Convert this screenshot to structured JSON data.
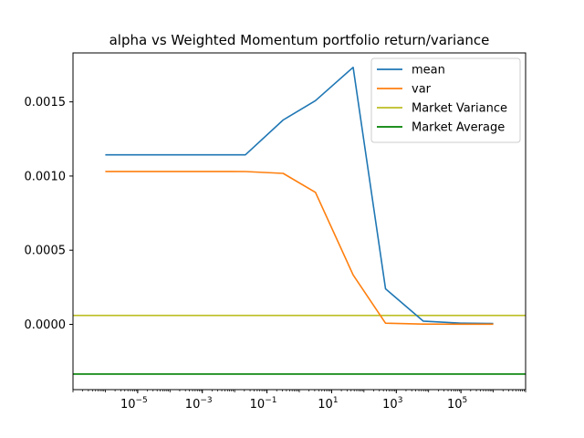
{
  "chart_data": {
    "type": "line",
    "title": "alpha vs Weighted Momentum portfolio return/variance",
    "xlabel": "",
    "ylabel": "",
    "x_scale": "log",
    "xlim": [
      1e-07,
      10000000.0
    ],
    "ylim": [
      -0.00044,
      0.00183
    ],
    "grid": false,
    "legend_position": "top-right",
    "x_ticks": [
      1e-05,
      0.001,
      0.1,
      10.0,
      1000.0,
      100000.0
    ],
    "x_tick_labels": [
      {
        "base": "10",
        "exp": "−5"
      },
      {
        "base": "10",
        "exp": "−3"
      },
      {
        "base": "10",
        "exp": "−1"
      },
      {
        "base": "10",
        "exp": "1"
      },
      {
        "base": "10",
        "exp": "3"
      },
      {
        "base": "10",
        "exp": "5"
      }
    ],
    "y_ticks": [
      0.0,
      0.0005,
      0.001,
      0.0015
    ],
    "y_tick_labels": [
      "0.0000",
      "0.0005",
      "0.0010",
      "0.0015"
    ],
    "series": [
      {
        "name": "mean",
        "color": "#1f77b4",
        "x": [
          1e-06,
          3.16e-05,
          0.001,
          0.0215,
          0.316,
          3.16,
          46.4,
          464,
          6810,
          100000,
          1000000
        ],
        "y": [
          0.001143,
          0.001143,
          0.001143,
          0.001143,
          0.001378,
          0.001508,
          0.001733,
          0.00024,
          2.2e-05,
          8e-06,
          6e-06
        ]
      },
      {
        "name": "var",
        "color": "#ff7f0e",
        "x": [
          1e-06,
          3.16e-05,
          0.001,
          0.0215,
          0.316,
          3.16,
          46.4,
          464,
          6810,
          100000,
          1000000
        ],
        "y": [
          0.001031,
          0.001031,
          0.001031,
          0.00103,
          0.001018,
          0.00089,
          0.000333,
          8e-06,
          2e-06,
          1e-06,
          1e-06
        ]
      }
    ],
    "horizontal_lines": [
      {
        "name": "Market Variance",
        "color": "#bcbd22",
        "y": 6e-05
      },
      {
        "name": "Market Average",
        "color": "#008000",
        "y": -0.000335
      }
    ]
  }
}
